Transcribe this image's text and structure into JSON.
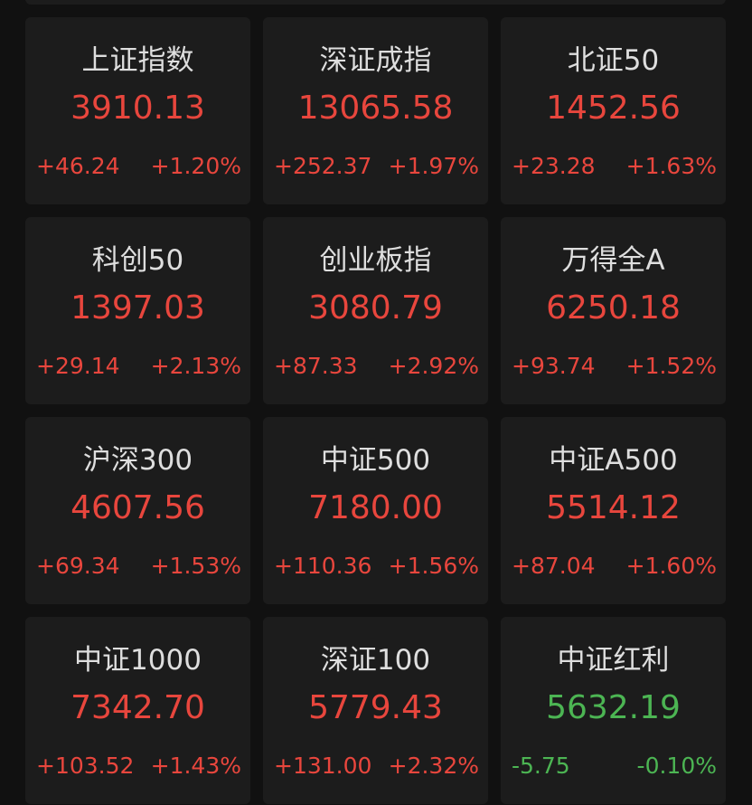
{
  "colors": {
    "up": "#e8463d",
    "down": "#4cb553",
    "background": "#111111",
    "card": "#1c1c1c"
  },
  "indices": [
    {
      "name": "上证指数",
      "value": "3910.13",
      "change": "+46.24",
      "pct": "+1.20%",
      "dir": "up"
    },
    {
      "name": "深证成指",
      "value": "13065.58",
      "change": "+252.37",
      "pct": "+1.97%",
      "dir": "up"
    },
    {
      "name": "北证50",
      "value": "1452.56",
      "change": "+23.28",
      "pct": "+1.63%",
      "dir": "up"
    },
    {
      "name": "科创50",
      "value": "1397.03",
      "change": "+29.14",
      "pct": "+2.13%",
      "dir": "up"
    },
    {
      "name": "创业板指",
      "value": "3080.79",
      "change": "+87.33",
      "pct": "+2.92%",
      "dir": "up"
    },
    {
      "name": "万得全A",
      "value": "6250.18",
      "change": "+93.74",
      "pct": "+1.52%",
      "dir": "up"
    },
    {
      "name": "沪深300",
      "value": "4607.56",
      "change": "+69.34",
      "pct": "+1.53%",
      "dir": "up"
    },
    {
      "name": "中证500",
      "value": "7180.00",
      "change": "+110.36",
      "pct": "+1.56%",
      "dir": "up"
    },
    {
      "name": "中证A500",
      "value": "5514.12",
      "change": "+87.04",
      "pct": "+1.60%",
      "dir": "up"
    },
    {
      "name": "中证1000",
      "value": "7342.70",
      "change": "+103.52",
      "pct": "+1.43%",
      "dir": "up"
    },
    {
      "name": "深证100",
      "value": "5779.43",
      "change": "+131.00",
      "pct": "+2.32%",
      "dir": "up"
    },
    {
      "name": "中证红利",
      "value": "5632.19",
      "change": "-5.75",
      "pct": "-0.10%",
      "dir": "down"
    }
  ]
}
